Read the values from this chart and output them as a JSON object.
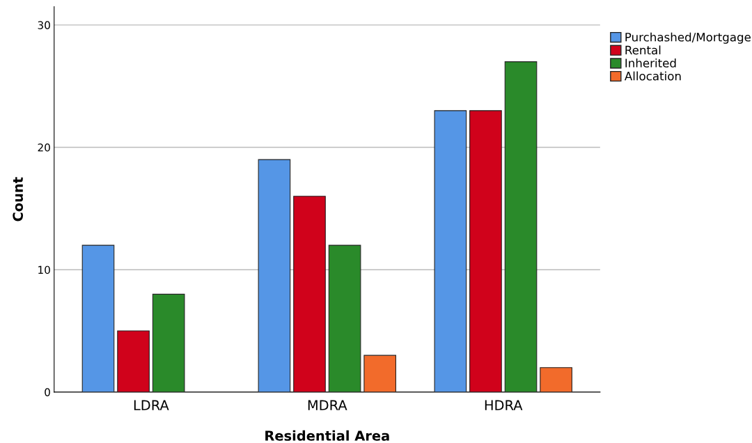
{
  "chart_data": {
    "type": "bar",
    "xlabel": "Residential Area",
    "ylabel": "Count",
    "categories": [
      "LDRA",
      "MDRA",
      "HDRA"
    ],
    "series": [
      {
        "name": "Purchashed/Mortgage",
        "color": "#5596e6",
        "values": [
          12,
          19,
          23
        ]
      },
      {
        "name": "Rental",
        "color": "#d0021b",
        "values": [
          5,
          16,
          23
        ]
      },
      {
        "name": "Inherited",
        "color": "#2a8a2a",
        "values": [
          8,
          12,
          27
        ]
      },
      {
        "name": "Allocation",
        "color": "#f26b2b",
        "values": [
          null,
          3,
          2
        ]
      }
    ],
    "ylim": [
      0,
      31.5
    ],
    "yticks": [
      0,
      10,
      20,
      30
    ],
    "grid": "y",
    "legend": "top right"
  }
}
